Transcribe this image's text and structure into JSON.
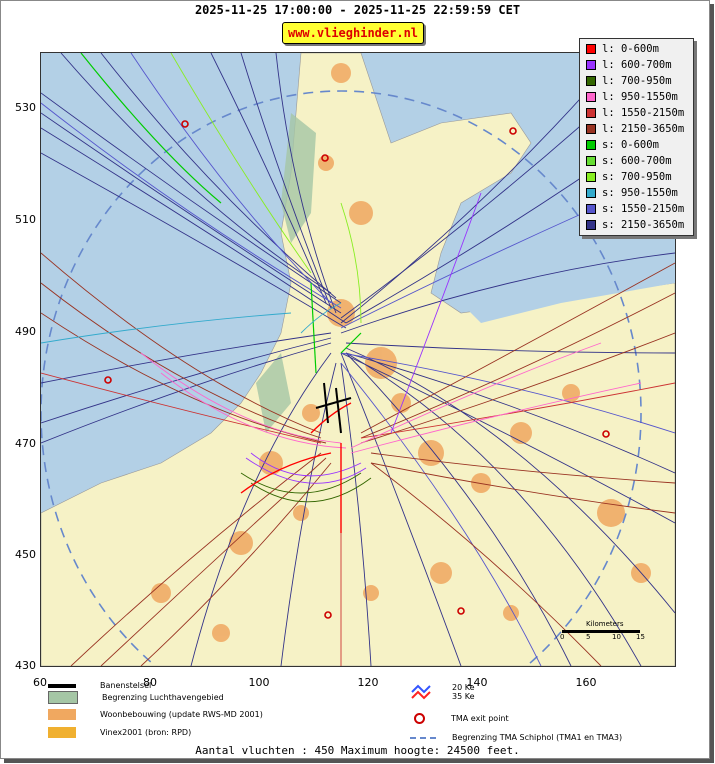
{
  "header": {
    "time_range": "2025-11-25 17:00:00 - 2025-11-25 22:59:59 CET",
    "site_label": "www.vlieghinder.nl"
  },
  "axes": {
    "y_ticks": [
      "530",
      "510",
      "490",
      "470",
      "450",
      "430"
    ],
    "x_ticks": [
      "60",
      "80",
      "100",
      "120",
      "140",
      "160"
    ]
  },
  "legend": {
    "items": [
      {
        "label": "l: 0-600m",
        "color": "#ff0000"
      },
      {
        "label": "l: 600-700m",
        "color": "#9933ff"
      },
      {
        "label": "l: 700-950m",
        "color": "#336600"
      },
      {
        "label": "l: 950-1550m",
        "color": "#ff66cc"
      },
      {
        "label": "l: 1550-2150m",
        "color": "#cc3333"
      },
      {
        "label": "l: 2150-3650m",
        "color": "#993322"
      },
      {
        "label": "s: 0-600m",
        "color": "#00cc00"
      },
      {
        "label": "s: 600-700m",
        "color": "#66dd33"
      },
      {
        "label": "s: 700-950m",
        "color": "#88ee22"
      },
      {
        "label": "s: 950-1550m",
        "color": "#33aacc"
      },
      {
        "label": "s: 1550-2150m",
        "color": "#5555cc"
      },
      {
        "label": "s: 2150-3650m",
        "color": "#333388"
      }
    ]
  },
  "map_legend": {
    "runways": "Banenstelsel",
    "airport_boundary": "Begrenzing Luchthavengebied",
    "housing": "Woonbebouwing (update RWS-MD 2001)",
    "vinex": "Vinex2001 (bron: RPD)",
    "noise_20": "20 Ke",
    "noise_35": "35 Ke",
    "tma_exit": "TMA exit point",
    "tma_boundary": "Begrenzing TMA Schiphol  (TMA1 en TMA3)"
  },
  "scale": {
    "title": "Kilometers",
    "ticks": [
      "0",
      "5",
      "10",
      "15"
    ]
  },
  "footer": {
    "summary": "Aantal vluchten : 450 Maximum hoogte: 24500 feet."
  },
  "colors": {
    "sea": "#b3d0e6",
    "land": "#f6f2c6",
    "urban": "#f0a860",
    "nature": "#a5c6a5",
    "tma": "#6688cc"
  }
}
